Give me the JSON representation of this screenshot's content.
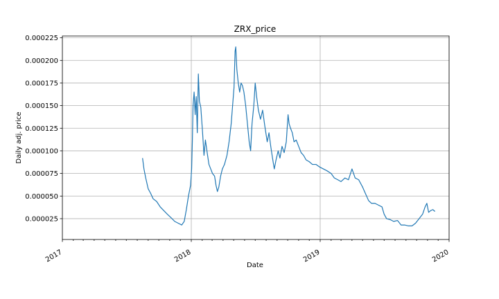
{
  "chart_data": {
    "type": "line",
    "title": "ZRX_price",
    "xlabel": "Date",
    "ylabel": "Daily adj. price",
    "grid": true,
    "x_axis": {
      "type": "date",
      "range": [
        "2017-01-01",
        "2020-01-01"
      ],
      "ticks": [
        "2017",
        "2018",
        "2019",
        "2020"
      ]
    },
    "y_axis": {
      "range": [
        2e-06,
        0.000227
      ],
      "ticks": [
        2.5e-05,
        5e-05,
        7.5e-05,
        0.0001,
        0.000125,
        0.00015,
        0.000175,
        0.0002,
        0.000225
      ],
      "tick_labels": [
        "0.000025",
        "0.000050",
        "0.000075",
        "0.000100",
        "0.000125",
        "0.000150",
        "0.000175",
        "0.000200",
        "0.000225"
      ]
    },
    "series": [
      {
        "color": "#1f77b4",
        "points": [
          [
            "2017-08-16",
            9.2e-05
          ],
          [
            "2017-08-20",
            8e-05
          ],
          [
            "2017-08-25",
            7e-05
          ],
          [
            "2017-09-01",
            5.8e-05
          ],
          [
            "2017-09-08",
            5.3e-05
          ],
          [
            "2017-09-15",
            4.7e-05
          ],
          [
            "2017-09-25",
            4.4e-05
          ],
          [
            "2017-10-05",
            3.8e-05
          ],
          [
            "2017-10-15",
            3.4e-05
          ],
          [
            "2017-10-25",
            3e-05
          ],
          [
            "2017-11-05",
            2.6e-05
          ],
          [
            "2017-11-15",
            2.2e-05
          ],
          [
            "2017-11-25",
            2e-05
          ],
          [
            "2017-12-05",
            1.8e-05
          ],
          [
            "2017-12-12",
            2.2e-05
          ],
          [
            "2017-12-18",
            3.5e-05
          ],
          [
            "2017-12-24",
            5e-05
          ],
          [
            "2017-12-30",
            6.2e-05
          ],
          [
            "2018-01-02",
            8e-05
          ],
          [
            "2018-01-04",
            0.00011
          ],
          [
            "2018-01-06",
            0.00015
          ],
          [
            "2018-01-09",
            0.000165
          ],
          [
            "2018-01-12",
            0.00014
          ],
          [
            "2018-01-15",
            0.00016
          ],
          [
            "2018-01-18",
            0.00012
          ],
          [
            "2018-01-21",
            0.000185
          ],
          [
            "2018-01-24",
            0.000155
          ],
          [
            "2018-01-28",
            0.000148
          ],
          [
            "2018-02-02",
            0.00012
          ],
          [
            "2018-02-06",
            9.5e-05
          ],
          [
            "2018-02-10",
            0.000112
          ],
          [
            "2018-02-15",
            9.8e-05
          ],
          [
            "2018-02-20",
            8.5e-05
          ],
          [
            "2018-02-25",
            8e-05
          ],
          [
            "2018-03-02",
            7.5e-05
          ],
          [
            "2018-03-08",
            7.2e-05
          ],
          [
            "2018-03-12",
            6.2e-05
          ],
          [
            "2018-03-16",
            5.5e-05
          ],
          [
            "2018-03-20",
            6e-05
          ],
          [
            "2018-03-25",
            7.2e-05
          ],
          [
            "2018-03-30",
            8e-05
          ],
          [
            "2018-04-05",
            8.5e-05
          ],
          [
            "2018-04-12",
            9.5e-05
          ],
          [
            "2018-04-18",
            0.00011
          ],
          [
            "2018-04-24",
            0.00013
          ],
          [
            "2018-04-28",
            0.00015
          ],
          [
            "2018-05-02",
            0.00017
          ],
          [
            "2018-05-05",
            0.00021
          ],
          [
            "2018-05-07",
            0.000215
          ],
          [
            "2018-05-10",
            0.00019
          ],
          [
            "2018-05-14",
            0.000175
          ],
          [
            "2018-05-18",
            0.000165
          ],
          [
            "2018-05-22",
            0.000175
          ],
          [
            "2018-05-26",
            0.000172
          ],
          [
            "2018-05-30",
            0.000165
          ],
          [
            "2018-06-04",
            0.00015
          ],
          [
            "2018-06-09",
            0.00013
          ],
          [
            "2018-06-14",
            0.00011
          ],
          [
            "2018-06-18",
            0.0001
          ],
          [
            "2018-06-22",
            0.00013
          ],
          [
            "2018-06-27",
            0.00015
          ],
          [
            "2018-07-01",
            0.000175
          ],
          [
            "2018-07-05",
            0.00016
          ],
          [
            "2018-07-10",
            0.000145
          ],
          [
            "2018-07-16",
            0.000135
          ],
          [
            "2018-07-22",
            0.000145
          ],
          [
            "2018-07-28",
            0.000128
          ],
          [
            "2018-08-04",
            0.00011
          ],
          [
            "2018-08-09",
            0.00012
          ],
          [
            "2018-08-14",
            0.000105
          ],
          [
            "2018-08-19",
            9.2e-05
          ],
          [
            "2018-08-24",
            8e-05
          ],
          [
            "2018-08-29",
            9e-05
          ],
          [
            "2018-09-04",
            0.0001
          ],
          [
            "2018-09-09",
            9.2e-05
          ],
          [
            "2018-09-15",
            0.000105
          ],
          [
            "2018-09-21",
            9.8e-05
          ],
          [
            "2018-09-27",
            0.00011
          ],
          [
            "2018-10-02",
            0.00014
          ],
          [
            "2018-10-05",
            0.00013
          ],
          [
            "2018-10-09",
            0.000125
          ],
          [
            "2018-10-14",
            0.00012
          ],
          [
            "2018-10-19",
            0.00011
          ],
          [
            "2018-10-25",
            0.000112
          ],
          [
            "2018-11-01",
            0.000105
          ],
          [
            "2018-11-08",
            9.8e-05
          ],
          [
            "2018-11-15",
            9.5e-05
          ],
          [
            "2018-11-22",
            9e-05
          ],
          [
            "2018-12-01",
            8.8e-05
          ],
          [
            "2018-12-10",
            8.5e-05
          ],
          [
            "2018-12-20",
            8.5e-05
          ],
          [
            "2018-12-31",
            8.2e-05
          ],
          [
            "2019-01-10",
            8e-05
          ],
          [
            "2019-01-20",
            7.8e-05
          ],
          [
            "2019-02-01",
            7.5e-05
          ],
          [
            "2019-02-10",
            7e-05
          ],
          [
            "2019-02-20",
            6.8e-05
          ],
          [
            "2019-03-01",
            6.6e-05
          ],
          [
            "2019-03-12",
            7e-05
          ],
          [
            "2019-03-22",
            6.8e-05
          ],
          [
            "2019-04-01",
            8e-05
          ],
          [
            "2019-04-10",
            7e-05
          ],
          [
            "2019-04-20",
            6.8e-05
          ],
          [
            "2019-05-01",
            6e-05
          ],
          [
            "2019-05-10",
            5.2e-05
          ],
          [
            "2019-05-18",
            4.5e-05
          ],
          [
            "2019-05-26",
            4.2e-05
          ],
          [
            "2019-06-05",
            4.2e-05
          ],
          [
            "2019-06-15",
            4e-05
          ],
          [
            "2019-06-25",
            3.8e-05
          ],
          [
            "2019-07-01",
            3e-05
          ],
          [
            "2019-07-08",
            2.5e-05
          ],
          [
            "2019-07-18",
            2.4e-05
          ],
          [
            "2019-07-28",
            2.2e-05
          ],
          [
            "2019-08-08",
            2.3e-05
          ],
          [
            "2019-08-18",
            1.8e-05
          ],
          [
            "2019-08-28",
            1.8e-05
          ],
          [
            "2019-09-08",
            1.7e-05
          ],
          [
            "2019-09-18",
            1.7e-05
          ],
          [
            "2019-09-28",
            2e-05
          ],
          [
            "2019-10-08",
            2.5e-05
          ],
          [
            "2019-10-18",
            3e-05
          ],
          [
            "2019-10-25",
            3.8e-05
          ],
          [
            "2019-10-30",
            4.2e-05
          ],
          [
            "2019-11-04",
            3.2e-05
          ],
          [
            "2019-11-10",
            3.4e-05
          ],
          [
            "2019-11-16",
            3.5e-05
          ],
          [
            "2019-11-22",
            3.3e-05
          ]
        ]
      }
    ]
  }
}
